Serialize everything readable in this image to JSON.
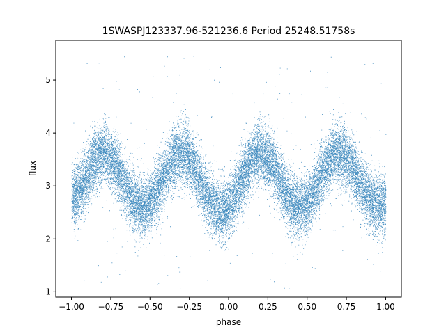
{
  "chart_data": {
    "type": "scatter",
    "title": "1SWASPJ123337.96-521236.6 Period 25248.51758s",
    "xlabel": "phase",
    "ylabel": "flux",
    "xlim": [
      -1.1,
      1.1
    ],
    "ylim": [
      0.9,
      5.75
    ],
    "x_ticks": [
      -1.0,
      -0.75,
      -0.5,
      -0.25,
      0.0,
      0.25,
      0.5,
      0.75,
      1.0
    ],
    "x_tick_labels": [
      "−1.00",
      "−0.75",
      "−0.50",
      "−0.25",
      "0.00",
      "0.25",
      "0.50",
      "0.75",
      "1.00"
    ],
    "y_ticks": [
      1,
      2,
      3,
      4,
      5
    ],
    "y_tick_labels": [
      "1",
      "2",
      "3",
      "4",
      "5"
    ],
    "grid": false,
    "series": [
      {
        "color": "#1f77b4",
        "phase_range": [
          -1.0,
          1.0
        ],
        "model": "double-humped light curve repeated twice over phase",
        "maxima_phase": [
          -0.8,
          -0.3,
          0.2,
          0.7
        ],
        "maxima_flux": 3.62,
        "minima_phase": [
          -1.0,
          -0.55,
          -0.05,
          0.45,
          0.95
        ],
        "minima_flux": [
          2.8,
          2.6,
          2.5,
          2.6,
          2.65
        ],
        "scatter_sigma": 0.28,
        "point_count": 24000,
        "outlier_range": [
          1.05,
          5.5
        ]
      }
    ]
  }
}
